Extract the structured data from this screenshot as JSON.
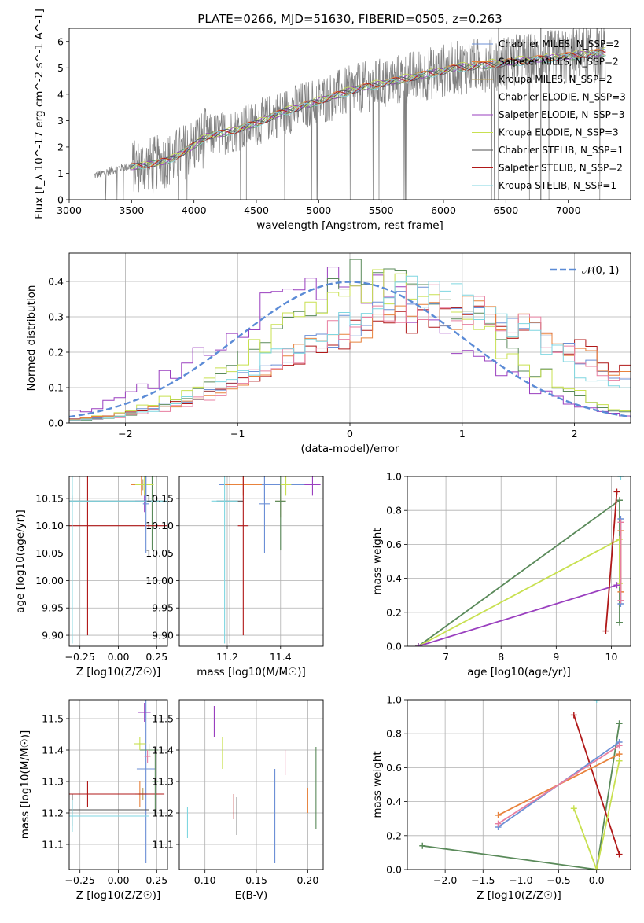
{
  "figure": {
    "title": "PLATE=0266, MJD=51630, FIBERID=0505, z=0.263"
  },
  "colors": {
    "chabrier_miles": "#6b8fd6",
    "salpeter_miles": "#e8823c",
    "kroupa_miles": "#b8a060",
    "chabrier_elodie": "#5a8a5a",
    "salpeter_elodie": "#9a3fbf",
    "kroupa_elodie": "#c8e050",
    "chabrier_stelib": "#505050",
    "salpeter_stelib": "#b01818",
    "kroupa_stelib": "#7fd6e0",
    "pink": "#e87fa0",
    "data": "#808080",
    "normal": "#5b8bd6"
  },
  "chart_data": [
    {
      "id": "spectrum",
      "type": "line",
      "title": "PLATE=0266, MJD=51630, FIBERID=0505, z=0.263",
      "xlabel": "wavelength [Angstrom, rest frame]",
      "ylabel": "Flux [f_λ 10^-17 erg cm^-2 s^-1 A^-1]",
      "xlim": [
        3000,
        7500
      ],
      "ylim": [
        0,
        6.5
      ],
      "xticks": [
        3000,
        3500,
        4000,
        4500,
        5000,
        5500,
        6000,
        6500,
        7000
      ],
      "yticks": [
        0,
        1,
        2,
        3,
        4,
        5,
        6
      ],
      "legend_position": "right",
      "legend": [
        "Chabrier MILES, N_SSP=2",
        "Salpeter MILES, N_SSP=2",
        "Kroupa MILES, N_SSP=2",
        "Chabrier ELODIE, N_SSP=3",
        "Salpeter ELODIE, N_SSP=3",
        "Kroupa ELODIE, N_SSP=3",
        "Chabrier STELIB, N_SSP=1",
        "Salpeter STELIB, N_SSP=2",
        "Kroupa STELIB, N_SSP=1"
      ],
      "data_range": [
        3200,
        7300
      ],
      "continuum": [
        [
          3200,
          0.9
        ],
        [
          3400,
          1.2
        ],
        [
          3600,
          1.3
        ],
        [
          3800,
          1.5
        ],
        [
          3950,
          1.9
        ],
        [
          4100,
          2.4
        ],
        [
          4300,
          2.6
        ],
        [
          4500,
          2.9
        ],
        [
          4700,
          3.3
        ],
        [
          4900,
          3.6
        ],
        [
          5100,
          3.9
        ],
        [
          5300,
          4.2
        ],
        [
          5500,
          4.4
        ],
        [
          5700,
          4.6
        ],
        [
          5900,
          4.8
        ],
        [
          6100,
          5.0
        ],
        [
          6300,
          5.1
        ],
        [
          6500,
          5.2
        ],
        [
          6700,
          5.3
        ],
        [
          6900,
          5.4
        ],
        [
          7100,
          5.5
        ],
        [
          7300,
          5.6
        ]
      ]
    },
    {
      "id": "residuals",
      "type": "histogram",
      "xlabel": "(data-model)/error",
      "ylabel": "Normed distribution",
      "xlim": [
        -2.5,
        2.5
      ],
      "ylim": [
        0,
        0.48
      ],
      "xticks": [
        -2,
        -1,
        0,
        1,
        2
      ],
      "yticks": [
        0.0,
        0.1,
        0.2,
        0.3,
        0.4
      ],
      "legend": [
        "N(0,1)"
      ],
      "legend_label_display": "𝒩(0, 1)",
      "legend_position": "upper right",
      "series": [
        {
          "color": "salpeter_elodie",
          "mu": -0.1,
          "sigma": 1.05
        },
        {
          "color": "chabrier_elodie",
          "mu": 0.3,
          "sigma": 0.95
        },
        {
          "color": "kroupa_elodie",
          "mu": 0.25,
          "sigma": 1.0
        },
        {
          "color": "salpeter_stelib",
          "mu": 0.9,
          "sigma": 1.3
        },
        {
          "color": "chabrier_miles",
          "mu": 0.7,
          "sigma": 1.2
        },
        {
          "color": "salpeter_miles",
          "mu": 0.8,
          "sigma": 1.25
        },
        {
          "color": "pink",
          "mu": 0.75,
          "sigma": 1.15
        },
        {
          "color": "kroupa_stelib",
          "mu": 0.6,
          "sigma": 1.1
        }
      ]
    },
    {
      "id": "age_vs_Z",
      "type": "errorbar",
      "xlabel": "Z [log10(Z/Z☉)]",
      "ylabel": "age  [log10(age/yr)]",
      "xlim": [
        -0.32,
        0.32
      ],
      "ylim": [
        9.88,
        10.19
      ],
      "xticks": [
        -0.25,
        0.0,
        0.25
      ],
      "yticks": [
        9.9,
        9.95,
        10.0,
        10.05,
        10.1,
        10.15
      ],
      "points": [
        {
          "x": 0.18,
          "y": 10.175,
          "xerr": 0.05,
          "yerr": 0.02,
          "color": "chabrier_miles"
        },
        {
          "x": 0.15,
          "y": 10.175,
          "xerr": 0.07,
          "yerr": 0.02,
          "color": "salpeter_miles"
        },
        {
          "x": 0.16,
          "y": 10.175,
          "xerr": 0.05,
          "yerr": 0.01,
          "color": "kroupa_miles"
        },
        {
          "x": 0.22,
          "y": 10.145,
          "xerr": 0.04,
          "yerr": 0.09,
          "color": "chabrier_elodie"
        },
        {
          "x": 0.17,
          "y": 10.145,
          "xerr": 0.06,
          "yerr": 0.02,
          "color": "salpeter_elodie"
        },
        {
          "x": 0.17,
          "y": 10.175,
          "xerr": 0.06,
          "yerr": 0.02,
          "color": "kroupa_elodie"
        },
        {
          "x": -0.3,
          "y": 10.145,
          "xerr": 0.6,
          "yerr": 0.01,
          "color": "chabrier_stelib"
        },
        {
          "x": -0.2,
          "y": 10.1,
          "xerr": 0.6,
          "yerr": 0.2,
          "color": "salpeter_stelib"
        },
        {
          "x": -0.3,
          "y": 10.145,
          "xerr": 0.62,
          "yerr": 0.26,
          "color": "kroupa_stelib"
        },
        {
          "x": 0.18,
          "y": 10.14,
          "xerr": 0.02,
          "yerr": 0.09,
          "color": "chabrier_miles"
        }
      ]
    },
    {
      "id": "age_vs_mass",
      "type": "errorbar",
      "xlabel": "mass [log10(M/M☉)]",
      "ylabel": "",
      "xlim": [
        11.02,
        11.56
      ],
      "ylim": [
        9.88,
        10.19
      ],
      "xticks": [
        11.2,
        11.4
      ],
      "yticks": [
        9.9,
        9.95,
        10.0,
        10.05,
        10.1,
        10.15
      ],
      "points": [
        {
          "x": 11.34,
          "y": 10.175,
          "xerr": 0.17,
          "yerr": 0.03,
          "color": "chabrier_miles"
        },
        {
          "x": 11.26,
          "y": 10.175,
          "xerr": 0.07,
          "yerr": 0.02,
          "color": "salpeter_miles"
        },
        {
          "x": 11.4,
          "y": 10.145,
          "xerr": 0.02,
          "yerr": 0.03,
          "color": "kroupa_miles"
        },
        {
          "x": 11.4,
          "y": 10.145,
          "xerr": 0.02,
          "yerr": 0.09,
          "color": "chabrier_elodie"
        },
        {
          "x": 11.52,
          "y": 10.175,
          "xerr": 0.03,
          "yerr": 0.02,
          "color": "salpeter_elodie"
        },
        {
          "x": 11.42,
          "y": 10.175,
          "xerr": 0.02,
          "yerr": 0.02,
          "color": "kroupa_elodie"
        },
        {
          "x": 11.21,
          "y": 10.145,
          "xerr": 0.05,
          "yerr": 0.26,
          "color": "chabrier_stelib"
        },
        {
          "x": 11.26,
          "y": 10.1,
          "xerr": 0.02,
          "yerr": 0.2,
          "color": "salpeter_stelib"
        },
        {
          "x": 11.19,
          "y": 10.145,
          "xerr": 0.05,
          "yerr": 0.26,
          "color": "kroupa_stelib"
        },
        {
          "x": 11.34,
          "y": 10.14,
          "xerr": 0.02,
          "yerr": 0.09,
          "color": "chabrier_miles"
        }
      ]
    },
    {
      "id": "weight_vs_age",
      "type": "line",
      "xlabel": "age  [log10(age/yr)]",
      "ylabel": "mass weight",
      "xlim": [
        6.3,
        10.35
      ],
      "ylim": [
        0,
        1
      ],
      "xticks": [
        7,
        8,
        9,
        10
      ],
      "yticks": [
        0.0,
        0.2,
        0.4,
        0.6,
        0.8,
        1.0
      ],
      "series": [
        {
          "color": "chabrier_elodie",
          "points": [
            [
              6.5,
              0.0
            ],
            [
              10.15,
              0.86
            ],
            [
              10.15,
              0.14
            ]
          ]
        },
        {
          "color": "kroupa_elodie",
          "points": [
            [
              6.5,
              0.0
            ],
            [
              10.15,
              0.63
            ],
            [
              10.15,
              0.37
            ]
          ]
        },
        {
          "color": "salpeter_elodie",
          "points": [
            [
              6.5,
              0.0
            ],
            [
              10.1,
              0.36
            ]
          ]
        },
        {
          "color": "salpeter_stelib",
          "points": [
            [
              9.9,
              0.09
            ],
            [
              10.1,
              0.91
            ]
          ]
        },
        {
          "color": "chabrier_miles",
          "points": [
            [
              10.17,
              0.75
            ],
            [
              10.17,
              0.25
            ]
          ]
        },
        {
          "color": "salpeter_miles",
          "points": [
            [
              10.17,
              0.68
            ],
            [
              10.17,
              0.32
            ]
          ]
        },
        {
          "color": "pink",
          "points": [
            [
              10.17,
              0.73
            ],
            [
              10.17,
              0.27
            ]
          ]
        },
        {
          "color": "kroupa_stelib",
          "points": [
            [
              10.17,
              1.0
            ]
          ]
        }
      ]
    },
    {
      "id": "mass_vs_Z",
      "type": "errorbar",
      "xlabel": "Z [log10(Z/Z☉)]",
      "ylabel": "mass [log10(M/M☉)]",
      "xlim": [
        -0.32,
        0.32
      ],
      "ylim": [
        11.02,
        11.56
      ],
      "xticks": [
        -0.25,
        0.0,
        0.25
      ],
      "yticks": [
        11.1,
        11.2,
        11.3,
        11.4,
        11.5
      ],
      "points": [
        {
          "x": 0.18,
          "y": 11.34,
          "xerr": 0.06,
          "yerr": 0.3,
          "color": "chabrier_miles"
        },
        {
          "x": 0.14,
          "y": 11.26,
          "xerr": 0.03,
          "yerr": 0.04,
          "color": "salpeter_miles"
        },
        {
          "x": 0.16,
          "y": 11.26,
          "xerr": 0.03,
          "yerr": 0.02,
          "color": "kroupa_miles"
        },
        {
          "x": 0.2,
          "y": 11.4,
          "xerr": 0.06,
          "yerr": 0.02,
          "color": "chabrier_elodie"
        },
        {
          "x": 0.17,
          "y": 11.52,
          "xerr": 0.04,
          "yerr": 0.03,
          "color": "salpeter_elodie"
        },
        {
          "x": 0.14,
          "y": 11.42,
          "xerr": 0.04,
          "yerr": 0.02,
          "color": "kroupa_elodie"
        },
        {
          "x": -0.3,
          "y": 11.21,
          "xerr": 0.5,
          "yerr": 0.05,
          "color": "chabrier_stelib"
        },
        {
          "x": -0.2,
          "y": 11.26,
          "xerr": 0.5,
          "yerr": 0.04,
          "color": "salpeter_stelib"
        },
        {
          "x": -0.3,
          "y": 11.19,
          "xerr": 0.5,
          "yerr": 0.05,
          "color": "kroupa_stelib"
        },
        {
          "x": 0.24,
          "y": 11.3,
          "xerr": 0.02,
          "yerr": 0.1,
          "color": "chabrier_elodie"
        },
        {
          "x": 0.19,
          "y": 11.38,
          "xerr": 0.02,
          "yerr": 0.02,
          "color": "pink"
        }
      ]
    },
    {
      "id": "mass_vs_EBV",
      "type": "errorbar",
      "xlabel": "E(B-V)",
      "ylabel": "",
      "xlim": [
        0.075,
        0.215
      ],
      "ylim": [
        11.02,
        11.56
      ],
      "xticks": [
        0.1,
        0.15,
        0.2
      ],
      "yticks": [
        11.1,
        11.2,
        11.3,
        11.4,
        11.5
      ],
      "points": [
        {
          "x": 0.083,
          "y": 11.17,
          "yerr": 0.05,
          "color": "kroupa_stelib"
        },
        {
          "x": 0.109,
          "y": 11.49,
          "yerr": 0.05,
          "color": "salpeter_elodie"
        },
        {
          "x": 0.117,
          "y": 11.39,
          "yerr": 0.05,
          "color": "kroupa_elodie"
        },
        {
          "x": 0.128,
          "y": 11.22,
          "yerr": 0.04,
          "color": "salpeter_stelib"
        },
        {
          "x": 0.131,
          "y": 11.19,
          "yerr": 0.06,
          "color": "chabrier_stelib"
        },
        {
          "x": 0.168,
          "y": 11.19,
          "yerr": 0.15,
          "color": "chabrier_miles"
        },
        {
          "x": 0.178,
          "y": 11.36,
          "yerr": 0.04,
          "color": "pink"
        },
        {
          "x": 0.2,
          "y": 11.24,
          "yerr": 0.04,
          "color": "salpeter_miles"
        },
        {
          "x": 0.208,
          "y": 11.28,
          "yerr": 0.13,
          "color": "chabrier_elodie"
        }
      ]
    },
    {
      "id": "weight_vs_Z",
      "type": "line",
      "xlabel": "Z [log10(Z/Z☉)]",
      "ylabel": "mass weight",
      "xlim": [
        -2.5,
        0.45
      ],
      "ylim": [
        0,
        1
      ],
      "xticks": [
        -2.0,
        -1.5,
        -1.0,
        -0.5,
        0.0
      ],
      "yticks": [
        0.0,
        0.2,
        0.4,
        0.6,
        0.8,
        1.0
      ],
      "series": [
        {
          "color": "chabrier_elodie",
          "points": [
            [
              -2.3,
              0.14
            ],
            [
              0.0,
              0.0
            ],
            [
              0.3,
              0.86
            ]
          ]
        },
        {
          "color": "salpeter_stelib",
          "points": [
            [
              -0.3,
              0.91
            ],
            [
              0.3,
              0.09
            ]
          ]
        },
        {
          "color": "chabrier_miles",
          "points": [
            [
              -1.3,
              0.25
            ],
            [
              0.3,
              0.75
            ]
          ]
        },
        {
          "color": "salpeter_miles",
          "points": [
            [
              -1.3,
              0.32
            ],
            [
              0.3,
              0.68
            ]
          ]
        },
        {
          "color": "pink",
          "points": [
            [
              -1.3,
              0.27
            ],
            [
              0.3,
              0.73
            ]
          ]
        },
        {
          "color": "kroupa_elodie",
          "points": [
            [
              -0.3,
              0.36
            ],
            [
              0.0,
              0.0
            ],
            [
              0.3,
              0.64
            ]
          ]
        },
        {
          "color": "kroupa_stelib",
          "points": [
            [
              0.0,
              1.0
            ]
          ]
        }
      ]
    }
  ]
}
